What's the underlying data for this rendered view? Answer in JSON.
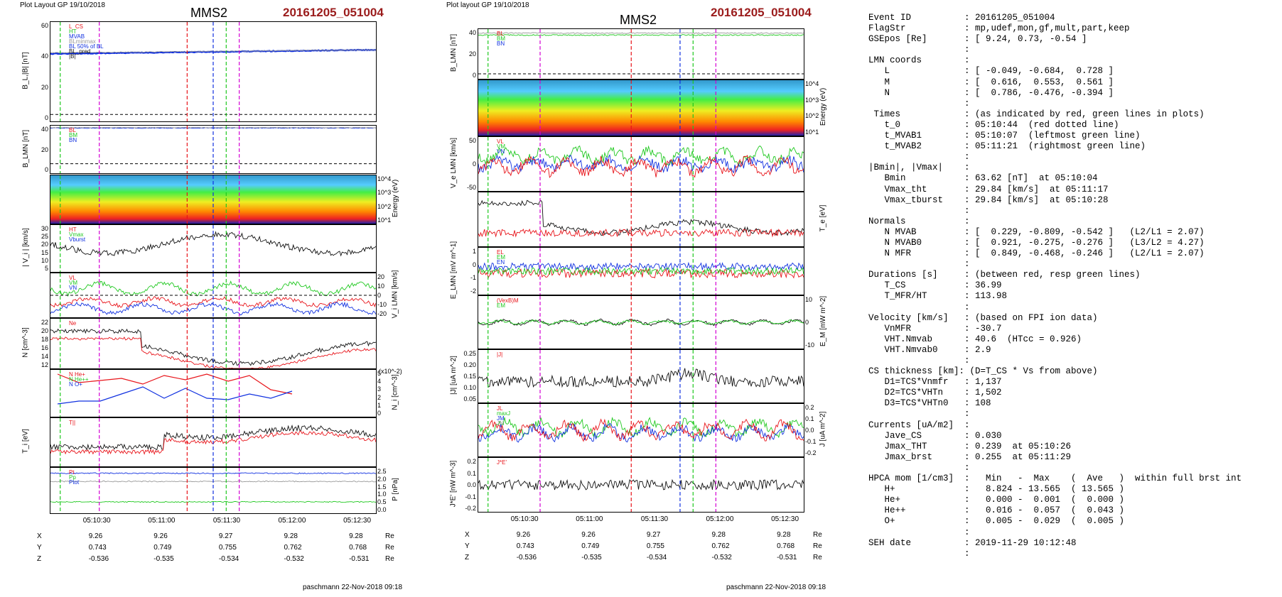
{
  "left_figure": {
    "header": "Plot Layout GP 19/10/2018",
    "spacecraft": "MMS2",
    "event": "20161205_051004",
    "footer": "paschmann 22-Nov-2018 09:18",
    "panels": [
      {
        "ylabel": "B_L,|B| [nT]",
        "ticks": [
          "60",
          "40",
          "20",
          "0"
        ],
        "legend": [
          "L_CS",
          "HT",
          "MVAB",
          "BLminmax",
          "BL 50% of BL",
          "BL_pred",
          "|B|"
        ]
      },
      {
        "ylabel": "B_LMN [nT]",
        "ticks": [
          "40",
          "20",
          "0"
        ],
        "legend": [
          "BL",
          "BM",
          "BN"
        ]
      },
      {
        "ylabel": "Energy (eV)",
        "ticks": [
          "10^4",
          "10^3",
          "10^2",
          "10^1"
        ],
        "legend": []
      },
      {
        "ylabel": "| V_i | [km/s]",
        "ticks": [
          "30",
          "25",
          "20",
          "15",
          "10",
          "5"
        ],
        "legend": [
          "HT",
          "Vmax",
          "Vburst"
        ]
      },
      {
        "ylabel": "V_i LMN [km/s]",
        "ticks": [
          "20",
          "10",
          "0",
          "-10",
          "-20"
        ],
        "legend": [
          "VL",
          "VM",
          "VN"
        ]
      },
      {
        "ylabel": "N [cm^-3]",
        "ticks": [
          "22",
          "20",
          "18",
          "16",
          "14",
          "12"
        ],
        "legend": [
          "Ne"
        ]
      },
      {
        "ylabel": "N_i [cm^-3]",
        "ticks": [
          "5",
          "4",
          "3",
          "2",
          "1",
          "0"
        ],
        "extra": "(x10^-2)",
        "legend": [
          "N He+",
          "N He++",
          "N O+"
        ]
      },
      {
        "ylabel": "T_i [eV]",
        "ticks": [],
        "legend": [
          "T||"
        ]
      },
      {
        "ylabel": "P [nPa]",
        "ticks": [
          "2.5",
          "2.0",
          "1.5",
          "1.0",
          "0.5",
          "0.0"
        ],
        "legend": [
          "Pt",
          "Pp",
          "Ptot"
        ]
      }
    ],
    "time_ticks": [
      "05:10:30",
      "05:11:00",
      "05:11:30",
      "05:12:00",
      "05:12:30"
    ],
    "coords": {
      "X": [
        "9.26",
        "9.26",
        "9.27",
        "9.28",
        "9.28"
      ],
      "Y": [
        "0.743",
        "0.749",
        "0.755",
        "0.762",
        "0.768"
      ],
      "Z": [
        "-0.536",
        "-0.535",
        "-0.534",
        "-0.532",
        "-0.531"
      ],
      "unit": "Re"
    }
  },
  "right_figure": {
    "header": "Plot layout GP 19/10/2018",
    "spacecraft": "MMS2",
    "event": "20161205_051004",
    "footer": "paschmann 22-Nov-2018 09:18",
    "panels": [
      {
        "ylabel": "B_LMN [nT]",
        "ticks": [
          "40",
          "20",
          "0"
        ],
        "legend": [
          "BL",
          "BM",
          "BN"
        ]
      },
      {
        "ylabel": "Energy (eV)",
        "ticks": [
          "10^4",
          "10^3",
          "10^2",
          "10^1"
        ],
        "legend": []
      },
      {
        "ylabel": "V_e LMN [km/s]",
        "ticks": [
          "50",
          "0",
          "-50"
        ],
        "legend": [
          "VL",
          "VM",
          "VN"
        ]
      },
      {
        "ylabel": "T_e [eV]",
        "ticks": [],
        "legend": []
      },
      {
        "ylabel": "E_LMN [mV m^-1]",
        "ticks": [
          "1",
          "0",
          "-1",
          "-2"
        ],
        "legend": [
          "EL",
          "EM",
          "EN"
        ]
      },
      {
        "ylabel": "E_M [mW m^-2]",
        "ticks": [
          "10",
          "0",
          "-10"
        ],
        "legend": [
          "(VexB)M",
          "EM"
        ]
      },
      {
        "ylabel": "|J| [uA m^-2]",
        "ticks": [
          "0.25",
          "0.20",
          "0.15",
          "0.10",
          "0.05"
        ],
        "legend": [
          "|J|"
        ]
      },
      {
        "ylabel": "J [uA m^-2]",
        "ticks": [
          "0.2",
          "0.1",
          "0.0",
          "-0.1",
          "-0.2"
        ],
        "legend": [
          "JL",
          "maxJ",
          "JM",
          "JN"
        ]
      },
      {
        "ylabel": "J*E' [nW m^-3]",
        "ticks": [
          "0.2",
          "0.1",
          "0.0",
          "-0.1",
          "-0.2"
        ],
        "legend": [
          "J*E'"
        ]
      }
    ],
    "time_ticks": [
      "05:10:30",
      "05:11:00",
      "05:11:30",
      "05:12:00",
      "05:12:30"
    ],
    "coords": {
      "X": [
        "9.26",
        "9.26",
        "9.27",
        "9.28",
        "9.28"
      ],
      "Y": [
        "0.743",
        "0.749",
        "0.755",
        "0.762",
        "0.768"
      ],
      "Z": [
        "-0.536",
        "-0.535",
        "-0.534",
        "-0.532",
        "-0.531"
      ],
      "unit": "Re"
    }
  },
  "info_lines": [
    "Event ID          : 20161205_051004",
    "FlagStr           : mp,udef,mon,gf,mult,part,keep",
    "GSEpos [Re]       : [ 9.24, 0.73, -0.54 ]",
    "                  :",
    "LMN coords        :",
    "   L              : [ -0.049, -0.684,  0.728 ]",
    "   M              : [  0.616,  0.553,  0.561 ]",
    "   N              : [  0.786, -0.476, -0.394 ]",
    "                  :",
    " Times            : (as indicated by red, green lines in plots)",
    "   t_0            : 05:10:44  (red dotted line)",
    "   t_MVAB1        : 05:10:07  (leftmost green line)",
    "   t_MVAB2        : 05:11:21  (rightmost green line)",
    "                  :",
    "|Bmin|, |Vmax|    :",
    "   Bmin           : 63.62 [nT]  at 05:10:04",
    "   Vmax_tht       : 29.84 [km/s]  at 05:11:17",
    "   Vmax_tburst    : 29.84 [km/s]  at 05:10:28",
    "                  :",
    "Normals           :",
    "   N MVAB         : [  0.229, -0.809, -0.542 ]   (L2/L1 = 2.07)",
    "   N MVAB0        : [  0.921, -0.275, -0.276 ]   (L3/L2 = 4.27)",
    "   N MFR          : [  0.849, -0.468, -0.246 ]   (L2/L1 = 2.07)",
    "                  :",
    "Durations [s]     : (between red, resp green lines)",
    "   T_CS           : 36.99",
    "   T_MFR/HT       : 113.98",
    "                  :",
    "Velocity [km/s]   : (based on FPI ion data)",
    "   VnMFR          : -30.7",
    "   VHT.Nmvab      : 40.6  (HTcc = 0.926)",
    "   VHT.Nmvab0     : 2.9",
    "                  :",
    "CS thickness [km]: (D=T_CS * Vs from above)",
    "   D1=TCS*Vnmfr   : 1,137",
    "   D2=TCS*VHTn    : 1,502",
    "   D3=TCS*VHTn0   : 108",
    "                  :",
    "Currents [uA/m2]  :",
    "   Jave_CS        : 0.030",
    "   Jmax_THT       : 0.239  at 05:10:26",
    "   Jmax_brst      : 0.255  at 05:11:29",
    "                  :",
    "HPCA mom [1/cm3]  :   Min   -  Max    (  Ave   )  within full brst int",
    "   H+             :   8.824 - 13.565  ( 13.565 )",
    "   He+            :   0.000 -  0.001  (  0.000 )",
    "   He++           :   0.016 -  0.057  (  0.043 )",
    "   O+             :   0.005 -  0.029  (  0.005 )",
    "                  :",
    "SEH date          : 2019-11-29 10:12:48",
    "                  :"
  ],
  "colors": {
    "red": "#e8141a",
    "green": "#1ec81e",
    "blue": "#1030e0",
    "black": "#111111",
    "magenta": "#d400d4",
    "gray": "#999999",
    "title": "#9b1c1c"
  }
}
